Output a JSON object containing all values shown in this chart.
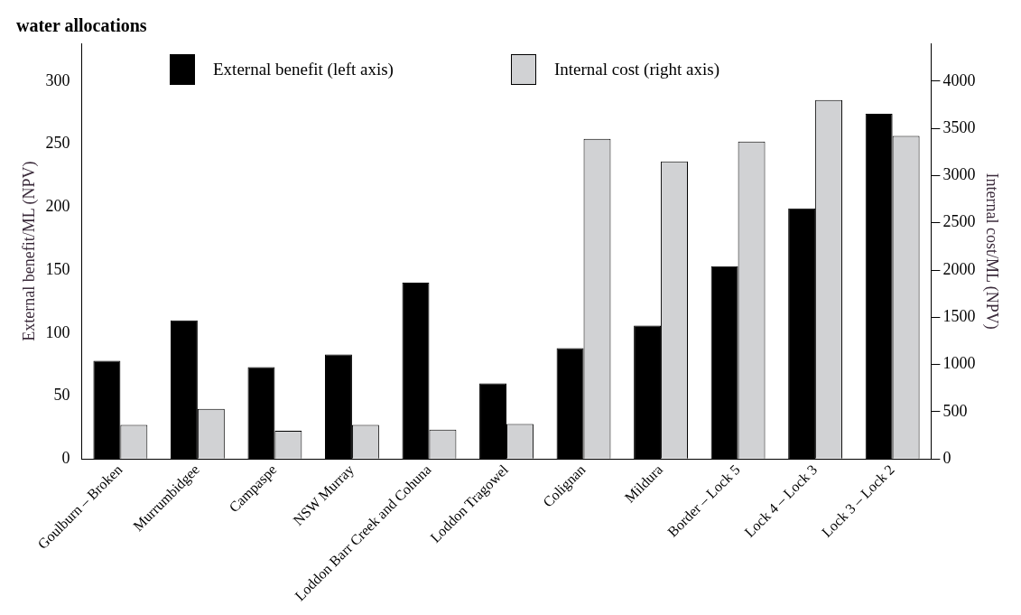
{
  "chart_data": {
    "type": "bar",
    "title": "water allocations",
    "categories": [
      "Goulburn – Broken",
      "Murrumbidgee",
      "Campaspe",
      "NSW Murray",
      "Loddon Barr Creek and Cohuna",
      "Loddon Tragowel",
      "Colignan",
      "Mildura",
      "Border – Lock 5",
      "Lock 4 – Lock 3",
      "Lock 3 – Lock 2"
    ],
    "series": [
      {
        "name": "External benefit (left axis)",
        "color": "#000000",
        "values": [
          78,
          110,
          73,
          83,
          140,
          60,
          88,
          106,
          153,
          199,
          274
        ]
      },
      {
        "name": "Internal cost (right axis)",
        "color": "#d1d2d4",
        "axis": "y2",
        "values": [
          360,
          530,
          300,
          360,
          310,
          370,
          3390,
          3150,
          3360,
          3800,
          3420
        ]
      }
    ],
    "ylabel": "External benefit/ML (NPV)",
    "y2label": "Internal cost/ML (NPV)",
    "ylim": [
      0,
      330
    ],
    "yticks": [
      0,
      50,
      100,
      150,
      200,
      250,
      300
    ],
    "y2lim": [
      0,
      4400
    ],
    "y2ticks": [
      0,
      500,
      1000,
      1500,
      2000,
      2500,
      3000,
      3500,
      4000
    ],
    "legend": "top",
    "grid": false
  }
}
